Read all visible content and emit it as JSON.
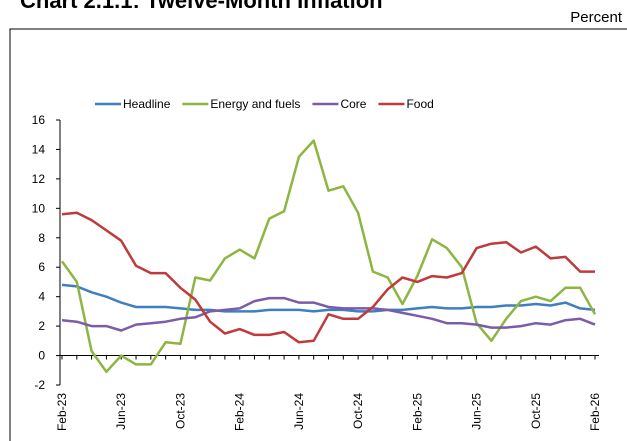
{
  "chart_data": {
    "type": "line",
    "title": "Chart 2.1.1: Twelve-Month Inflation",
    "y_label": "Percent",
    "categories": [
      "Feb-23",
      null,
      null,
      null,
      "Jun-23",
      null,
      null,
      null,
      "Oct-23",
      null,
      null,
      null,
      "Feb-24",
      null,
      null,
      null,
      "Jun-24",
      null,
      null,
      null,
      "Oct-24",
      null,
      null,
      null,
      "Feb-25",
      null,
      null,
      null,
      "Jun-25",
      null,
      null,
      null,
      "Oct-25",
      null,
      null,
      null,
      "Feb-26"
    ],
    "series": [
      {
        "name": "Headline",
        "color": "#3f7fbf",
        "values": [
          4.8,
          4.7,
          4.3,
          4.0,
          3.6,
          3.3,
          3.3,
          3.3,
          3.2,
          3.1,
          3.1,
          3.0,
          3.0,
          3.0,
          3.1,
          3.1,
          3.1,
          3.0,
          3.1,
          3.1,
          3.0,
          3.0,
          3.1,
          3.1,
          3.2,
          3.3,
          3.2,
          3.2,
          3.3,
          3.3,
          3.4,
          3.4,
          3.5,
          3.4,
          3.6,
          3.2,
          3.1
        ]
      },
      {
        "name": "Energy and fuels",
        "color": "#8db542",
        "values": [
          6.4,
          5.0,
          0.3,
          -1.1,
          0.0,
          -0.6,
          -0.6,
          0.9,
          0.8,
          5.3,
          5.1,
          6.6,
          7.2,
          6.6,
          9.3,
          9.8,
          13.5,
          14.6,
          11.2,
          11.5,
          9.7,
          5.7,
          5.3,
          3.5,
          5.4,
          7.9,
          7.3,
          6.0,
          2.2,
          1.0,
          2.5,
          3.7,
          4.0,
          3.7,
          4.6,
          4.6,
          2.8
        ]
      },
      {
        "name": "Core",
        "color": "#7a5ca8",
        "values": [
          2.4,
          2.3,
          2.0,
          2.0,
          1.7,
          2.1,
          2.2,
          2.3,
          2.5,
          2.6,
          3.0,
          3.1,
          3.2,
          3.7,
          3.9,
          3.9,
          3.6,
          3.6,
          3.3,
          3.2,
          3.2,
          3.2,
          3.1,
          2.9,
          2.7,
          2.5,
          2.2,
          2.2,
          2.1,
          1.9,
          1.9,
          2.0,
          2.2,
          2.1,
          2.4,
          2.5,
          2.1
        ]
      },
      {
        "name": "Food",
        "color": "#c0393b",
        "values": [
          9.6,
          9.7,
          9.2,
          8.5,
          7.8,
          6.1,
          5.6,
          5.6,
          4.6,
          3.8,
          2.3,
          1.5,
          1.8,
          1.4,
          1.4,
          1.6,
          0.9,
          1.0,
          2.8,
          2.5,
          2.5,
          3.3,
          4.5,
          5.3,
          5.0,
          5.4,
          5.3,
          5.6,
          7.3,
          7.6,
          7.7,
          7.0,
          7.4,
          6.6,
          6.7,
          5.7,
          5.7
        ]
      }
    ],
    "ylim": [
      -2,
      16
    ],
    "yticks": [
      -2,
      0,
      2,
      4,
      6,
      8,
      10,
      12,
      14,
      16
    ],
    "grid": false,
    "legend": "top"
  }
}
